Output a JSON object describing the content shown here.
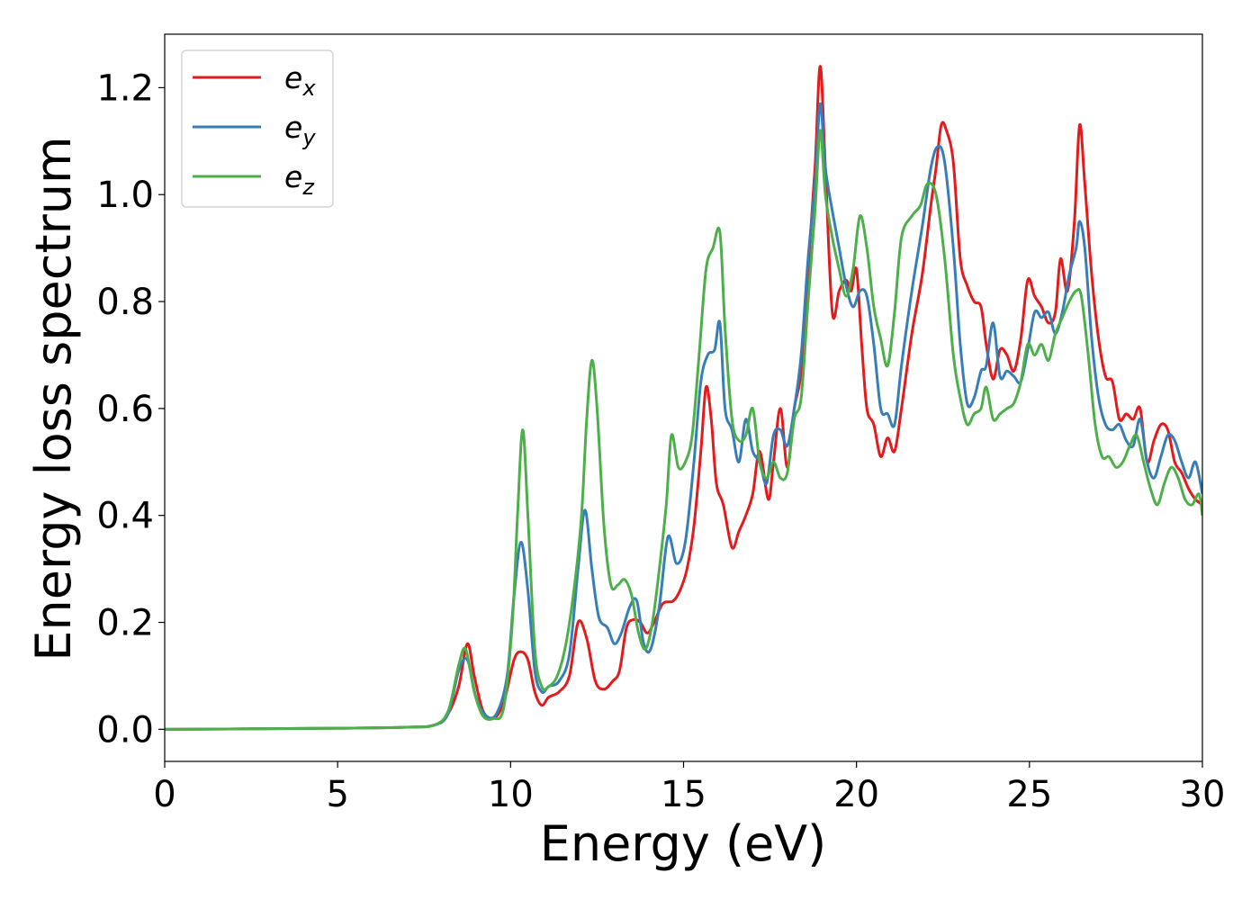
{
  "chart_data": {
    "type": "line",
    "title": "",
    "xlabel": "Energy (eV)",
    "ylabel": "Energy loss spectrum",
    "xlim": [
      0,
      30
    ],
    "ylim": [
      -0.06,
      1.3
    ],
    "xticks": [
      0,
      5,
      10,
      15,
      20,
      25,
      30
    ],
    "xtick_labels": [
      "0",
      "5",
      "10",
      "15",
      "20",
      "25",
      "30"
    ],
    "yticks": [
      0.0,
      0.2,
      0.4,
      0.6,
      0.8,
      1.0,
      1.2
    ],
    "ytick_labels": [
      "0.0",
      "0.2",
      "0.4",
      "0.6",
      "0.8",
      "1.0",
      "1.2"
    ],
    "grid": false,
    "legend_position": "upper-left",
    "series": [
      {
        "name": "e",
        "subscript": "x",
        "color": "#e41a1c",
        "x": [
          0,
          5,
          7,
          7.8,
          8.2,
          8.5,
          8.75,
          8.95,
          9.2,
          9.5,
          9.8,
          10.1,
          10.3,
          10.5,
          10.7,
          10.9,
          11.1,
          11.4,
          11.7,
          11.95,
          12.2,
          12.45,
          12.7,
          12.95,
          13.15,
          13.35,
          13.55,
          13.75,
          13.95,
          14.15,
          14.4,
          14.7,
          14.9,
          15.1,
          15.3,
          15.5,
          15.65,
          15.8,
          15.95,
          16.15,
          16.4,
          16.6,
          16.8,
          17.0,
          17.2,
          17.45,
          17.6,
          17.8,
          18.0,
          18.2,
          18.4,
          18.6,
          18.8,
          18.95,
          19.1,
          19.3,
          19.5,
          19.7,
          19.85,
          20.0,
          20.15,
          20.3,
          20.5,
          20.7,
          20.9,
          21.1,
          21.3,
          21.6,
          21.9,
          22.15,
          22.3,
          22.45,
          22.6,
          22.8,
          23.0,
          23.2,
          23.4,
          23.6,
          23.75,
          23.95,
          24.15,
          24.35,
          24.55,
          24.75,
          24.95,
          25.15,
          25.35,
          25.55,
          25.75,
          25.9,
          26.1,
          26.3,
          26.45,
          26.6,
          26.8,
          27.0,
          27.2,
          27.4,
          27.6,
          27.8,
          28.0,
          28.2,
          28.4,
          28.6,
          28.8,
          29.0,
          29.2,
          29.4,
          29.6,
          29.8,
          30.0
        ],
        "values": [
          0.0,
          0.002,
          0.004,
          0.008,
          0.03,
          0.08,
          0.16,
          0.1,
          0.035,
          0.02,
          0.05,
          0.13,
          0.145,
          0.13,
          0.07,
          0.045,
          0.06,
          0.07,
          0.1,
          0.2,
          0.17,
          0.09,
          0.075,
          0.09,
          0.11,
          0.19,
          0.205,
          0.2,
          0.18,
          0.2,
          0.235,
          0.24,
          0.26,
          0.3,
          0.38,
          0.52,
          0.64,
          0.58,
          0.46,
          0.42,
          0.34,
          0.37,
          0.4,
          0.44,
          0.52,
          0.43,
          0.5,
          0.6,
          0.49,
          0.6,
          0.67,
          0.86,
          1.05,
          1.24,
          1.05,
          0.78,
          0.82,
          0.84,
          0.82,
          0.86,
          0.72,
          0.6,
          0.57,
          0.51,
          0.545,
          0.52,
          0.6,
          0.74,
          0.85,
          0.98,
          1.05,
          1.13,
          1.12,
          1.06,
          0.88,
          0.83,
          0.8,
          0.79,
          0.72,
          0.655,
          0.71,
          0.7,
          0.67,
          0.73,
          0.84,
          0.81,
          0.79,
          0.76,
          0.78,
          0.88,
          0.82,
          0.95,
          1.13,
          1.02,
          0.85,
          0.73,
          0.66,
          0.65,
          0.58,
          0.59,
          0.58,
          0.6,
          0.5,
          0.54,
          0.57,
          0.56,
          0.5,
          0.48,
          0.45,
          0.43,
          0.42
        ]
      },
      {
        "name": "e",
        "subscript": "y",
        "color": "#377eb8",
        "x": [
          0,
          5,
          7,
          7.8,
          8.2,
          8.5,
          8.75,
          9.0,
          9.3,
          9.6,
          9.9,
          10.1,
          10.3,
          10.5,
          10.7,
          10.9,
          11.1,
          11.4,
          11.7,
          11.95,
          12.15,
          12.35,
          12.55,
          12.8,
          13.0,
          13.2,
          13.45,
          13.65,
          13.85,
          14.05,
          14.3,
          14.55,
          14.8,
          15.05,
          15.3,
          15.5,
          15.7,
          15.9,
          16.05,
          16.2,
          16.4,
          16.6,
          16.8,
          17.0,
          17.2,
          17.4,
          17.6,
          17.8,
          18.0,
          18.2,
          18.4,
          18.6,
          18.8,
          18.95,
          19.1,
          19.3,
          19.5,
          19.7,
          19.9,
          20.1,
          20.3,
          20.5,
          20.7,
          20.9,
          21.1,
          21.3,
          21.6,
          21.9,
          22.15,
          22.35,
          22.55,
          22.8,
          23.0,
          23.2,
          23.4,
          23.6,
          23.75,
          23.95,
          24.15,
          24.35,
          24.55,
          24.75,
          24.95,
          25.15,
          25.35,
          25.55,
          25.75,
          25.95,
          26.15,
          26.35,
          26.45,
          26.6,
          26.8,
          27.0,
          27.2,
          27.4,
          27.6,
          27.8,
          28.0,
          28.2,
          28.4,
          28.6,
          28.8,
          29.0,
          29.2,
          29.4,
          29.6,
          29.8,
          30.0
        ],
        "values": [
          0.0,
          0.002,
          0.004,
          0.008,
          0.03,
          0.11,
          0.13,
          0.06,
          0.025,
          0.03,
          0.1,
          0.25,
          0.35,
          0.26,
          0.11,
          0.07,
          0.08,
          0.09,
          0.14,
          0.3,
          0.41,
          0.3,
          0.21,
          0.19,
          0.16,
          0.18,
          0.23,
          0.24,
          0.16,
          0.15,
          0.23,
          0.36,
          0.31,
          0.35,
          0.5,
          0.65,
          0.7,
          0.71,
          0.76,
          0.6,
          0.56,
          0.5,
          0.58,
          0.52,
          0.5,
          0.46,
          0.55,
          0.56,
          0.53,
          0.6,
          0.7,
          0.88,
          1.02,
          1.17,
          1.05,
          0.97,
          0.9,
          0.83,
          0.79,
          0.82,
          0.81,
          0.72,
          0.6,
          0.59,
          0.57,
          0.68,
          0.82,
          0.94,
          1.05,
          1.09,
          1.06,
          0.9,
          0.72,
          0.61,
          0.62,
          0.67,
          0.68,
          0.76,
          0.66,
          0.67,
          0.66,
          0.65,
          0.71,
          0.78,
          0.77,
          0.78,
          0.74,
          0.78,
          0.85,
          0.9,
          0.95,
          0.9,
          0.73,
          0.62,
          0.57,
          0.56,
          0.57,
          0.54,
          0.53,
          0.58,
          0.5,
          0.47,
          0.51,
          0.55,
          0.54,
          0.5,
          0.47,
          0.5,
          0.44
        ]
      },
      {
        "name": "e",
        "subscript": "z",
        "color": "#4daf4a",
        "x": [
          0,
          5,
          7,
          7.8,
          8.2,
          8.5,
          8.7,
          8.95,
          9.2,
          9.5,
          9.8,
          10.05,
          10.2,
          10.35,
          10.5,
          10.7,
          10.9,
          11.1,
          11.35,
          11.6,
          11.85,
          12.05,
          12.2,
          12.35,
          12.5,
          12.7,
          12.9,
          13.1,
          13.3,
          13.5,
          13.7,
          13.9,
          14.1,
          14.3,
          14.5,
          14.65,
          14.85,
          15.05,
          15.25,
          15.45,
          15.65,
          15.85,
          16.05,
          16.2,
          16.4,
          16.6,
          16.8,
          17.0,
          17.2,
          17.4,
          17.6,
          17.8,
          18.0,
          18.2,
          18.4,
          18.6,
          18.8,
          18.95,
          19.1,
          19.3,
          19.5,
          19.7,
          19.9,
          20.1,
          20.3,
          20.5,
          20.7,
          20.9,
          21.1,
          21.3,
          21.6,
          21.85,
          22.05,
          22.3,
          22.55,
          22.8,
          23.0,
          23.2,
          23.4,
          23.6,
          23.75,
          23.95,
          24.15,
          24.35,
          24.55,
          24.75,
          24.95,
          25.15,
          25.35,
          25.55,
          25.75,
          25.95,
          26.15,
          26.35,
          26.5,
          26.7,
          26.9,
          27.1,
          27.3,
          27.5,
          27.7,
          27.9,
          28.1,
          28.3,
          28.5,
          28.7,
          28.9,
          29.1,
          29.3,
          29.5,
          29.7,
          29.9,
          30.0
        ],
        "values": [
          0.0,
          0.002,
          0.004,
          0.008,
          0.035,
          0.12,
          0.15,
          0.07,
          0.025,
          0.02,
          0.04,
          0.2,
          0.4,
          0.56,
          0.4,
          0.15,
          0.08,
          0.08,
          0.1,
          0.16,
          0.27,
          0.4,
          0.58,
          0.69,
          0.6,
          0.38,
          0.27,
          0.27,
          0.28,
          0.25,
          0.18,
          0.15,
          0.2,
          0.3,
          0.42,
          0.55,
          0.49,
          0.5,
          0.55,
          0.7,
          0.86,
          0.9,
          0.93,
          0.75,
          0.58,
          0.54,
          0.55,
          0.6,
          0.5,
          0.47,
          0.5,
          0.47,
          0.48,
          0.58,
          0.62,
          0.8,
          0.97,
          1.12,
          1.0,
          0.92,
          0.86,
          0.81,
          0.86,
          0.96,
          0.9,
          0.79,
          0.73,
          0.68,
          0.78,
          0.92,
          0.96,
          0.98,
          1.02,
          1.0,
          0.88,
          0.7,
          0.62,
          0.57,
          0.59,
          0.6,
          0.64,
          0.58,
          0.59,
          0.6,
          0.61,
          0.65,
          0.72,
          0.7,
          0.72,
          0.69,
          0.74,
          0.77,
          0.8,
          0.82,
          0.81,
          0.7,
          0.57,
          0.51,
          0.51,
          0.49,
          0.5,
          0.53,
          0.55,
          0.5,
          0.45,
          0.42,
          0.46,
          0.49,
          0.47,
          0.43,
          0.42,
          0.44,
          0.4
        ]
      }
    ]
  }
}
